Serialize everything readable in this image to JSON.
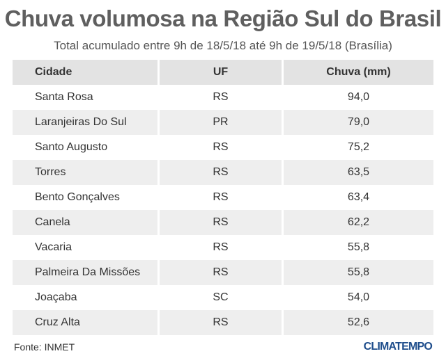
{
  "title": "Chuva volumosa na Região Sul do Brasil",
  "subtitle": "Total acumulado entre 9h de 18/5/18 até 9h de 19/5/18 (Brasília)",
  "table": {
    "headers": [
      "Cidade",
      "UF",
      "Chuva (mm)"
    ],
    "rows": [
      [
        "Santa Rosa",
        "RS",
        "94,0"
      ],
      [
        "Laranjeiras Do Sul",
        "PR",
        "79,0"
      ],
      [
        "Santo Augusto",
        "RS",
        "75,2"
      ],
      [
        "Torres",
        "RS",
        "63,5"
      ],
      [
        "Bento Gonçalves",
        "RS",
        "63,4"
      ],
      [
        "Canela",
        "RS",
        "62,2"
      ],
      [
        "Vacaria",
        "RS",
        "55,8"
      ],
      [
        "Palmeira Da Missões",
        "RS",
        "55,8"
      ],
      [
        "Joaçaba",
        "SC",
        "54,0"
      ],
      [
        "Cruz Alta",
        "RS",
        "52,6"
      ]
    ]
  },
  "footer": {
    "source": "Fonte: INMET",
    "brand": "CLIMATEMPO"
  }
}
